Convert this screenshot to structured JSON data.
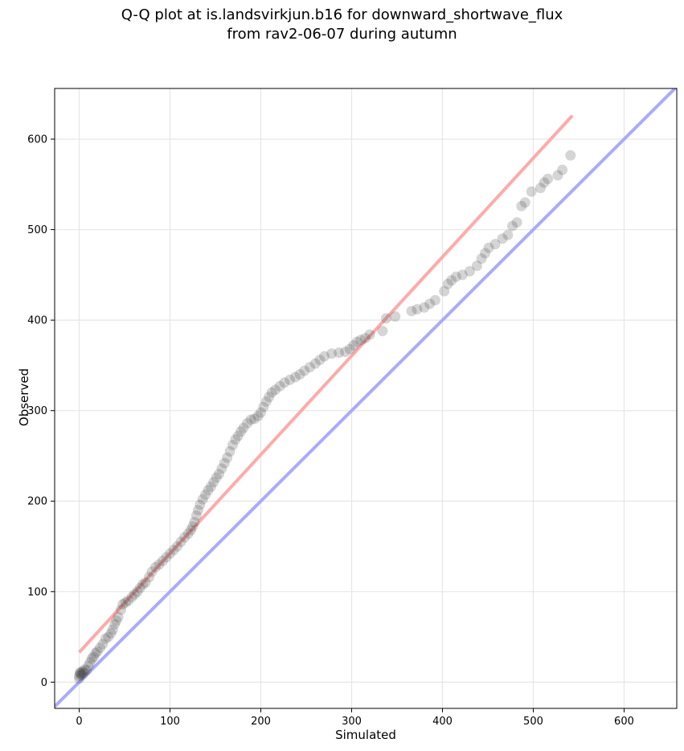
{
  "figure": {
    "title_line1": "Q-Q plot at is.landsvirkjun.b16 for downward_shortwave_flux",
    "title_line2": "from rav2-06-07 during autumn"
  },
  "chart_data": {
    "type": "scatter",
    "title": "Q-Q plot at is.landsvirkjun.b16 for downward_shortwave_flux from rav2-06-07 during autumn",
    "xlabel": "Simulated",
    "ylabel": "Observed",
    "xlim": [
      -27,
      658
    ],
    "ylim": [
      -29,
      656
    ],
    "xticks": [
      0,
      100,
      200,
      300,
      400,
      500,
      600
    ],
    "yticks": [
      0,
      100,
      200,
      300,
      400,
      500,
      600
    ],
    "grid": true,
    "colors": {
      "points": "#404040",
      "identity_line": "#aaaaff",
      "fit_line": "#ffaaaa"
    },
    "identity_line": {
      "x": [
        -27,
        658
      ],
      "y": [
        -27,
        658
      ]
    },
    "fit_line": {
      "x": [
        0,
        543
      ],
      "y": [
        33,
        626
      ]
    },
    "points": [
      [
        0,
        4
      ],
      [
        0,
        7
      ],
      [
        1,
        9
      ],
      [
        1,
        11
      ],
      [
        2,
        10
      ],
      [
        3,
        8
      ],
      [
        4,
        12
      ],
      [
        5,
        10
      ],
      [
        6,
        14
      ],
      [
        8,
        13
      ],
      [
        10,
        18
      ],
      [
        12,
        22
      ],
      [
        14,
        26
      ],
      [
        16,
        28
      ],
      [
        18,
        32
      ],
      [
        20,
        34
      ],
      [
        23,
        38
      ],
      [
        26,
        42
      ],
      [
        29,
        48
      ],
      [
        32,
        50
      ],
      [
        35,
        54
      ],
      [
        37,
        58
      ],
      [
        39,
        64
      ],
      [
        41,
        68
      ],
      [
        43,
        72
      ],
      [
        46,
        80
      ],
      [
        48,
        86
      ],
      [
        51,
        88
      ],
      [
        54,
        90
      ],
      [
        58,
        94
      ],
      [
        61,
        97
      ],
      [
        64,
        100
      ],
      [
        67,
        104
      ],
      [
        70,
        108
      ],
      [
        73,
        110
      ],
      [
        77,
        116
      ],
      [
        80,
        122
      ],
      [
        84,
        127
      ],
      [
        88,
        130
      ],
      [
        92,
        134
      ],
      [
        96,
        138
      ],
      [
        100,
        142
      ],
      [
        104,
        146
      ],
      [
        108,
        150
      ],
      [
        112,
        155
      ],
      [
        116,
        160
      ],
      [
        120,
        164
      ],
      [
        123,
        168
      ],
      [
        125,
        172
      ],
      [
        127,
        177
      ],
      [
        129,
        184
      ],
      [
        131,
        190
      ],
      [
        133,
        196
      ],
      [
        136,
        202
      ],
      [
        139,
        207
      ],
      [
        142,
        212
      ],
      [
        145,
        216
      ],
      [
        148,
        221
      ],
      [
        151,
        226
      ],
      [
        154,
        230
      ],
      [
        157,
        236
      ],
      [
        160,
        242
      ],
      [
        163,
        248
      ],
      [
        166,
        255
      ],
      [
        169,
        262
      ],
      [
        172,
        268
      ],
      [
        175,
        272
      ],
      [
        178,
        277
      ],
      [
        181,
        281
      ],
      [
        185,
        286
      ],
      [
        189,
        290
      ],
      [
        193,
        291
      ],
      [
        197,
        294
      ],
      [
        200,
        298
      ],
      [
        203,
        304
      ],
      [
        206,
        310
      ],
      [
        209,
        315
      ],
      [
        212,
        320
      ],
      [
        216,
        323
      ],
      [
        221,
        327
      ],
      [
        226,
        331
      ],
      [
        232,
        334
      ],
      [
        238,
        337
      ],
      [
        243,
        340
      ],
      [
        248,
        344
      ],
      [
        254,
        348
      ],
      [
        260,
        352
      ],
      [
        265,
        356
      ],
      [
        270,
        360
      ],
      [
        278,
        363
      ],
      [
        286,
        364
      ],
      [
        293,
        365
      ],
      [
        298,
        368
      ],
      [
        302,
        372
      ],
      [
        306,
        376
      ],
      [
        310,
        378
      ],
      [
        315,
        380
      ],
      [
        320,
        384
      ],
      [
        334,
        388
      ],
      [
        338,
        402
      ],
      [
        348,
        404
      ],
      [
        366,
        410
      ],
      [
        372,
        412
      ],
      [
        380,
        414
      ],
      [
        386,
        418
      ],
      [
        392,
        422
      ],
      [
        402,
        432
      ],
      [
        406,
        440
      ],
      [
        410,
        444
      ],
      [
        415,
        448
      ],
      [
        422,
        450
      ],
      [
        430,
        454
      ],
      [
        438,
        460
      ],
      [
        443,
        468
      ],
      [
        447,
        474
      ],
      [
        451,
        480
      ],
      [
        458,
        484
      ],
      [
        466,
        490
      ],
      [
        472,
        494
      ],
      [
        477,
        504
      ],
      [
        482,
        508
      ],
      [
        487,
        526
      ],
      [
        491,
        530
      ],
      [
        498,
        542
      ],
      [
        508,
        546
      ],
      [
        512,
        552
      ],
      [
        516,
        556
      ],
      [
        527,
        560
      ],
      [
        532,
        566
      ],
      [
        541,
        582
      ]
    ]
  }
}
